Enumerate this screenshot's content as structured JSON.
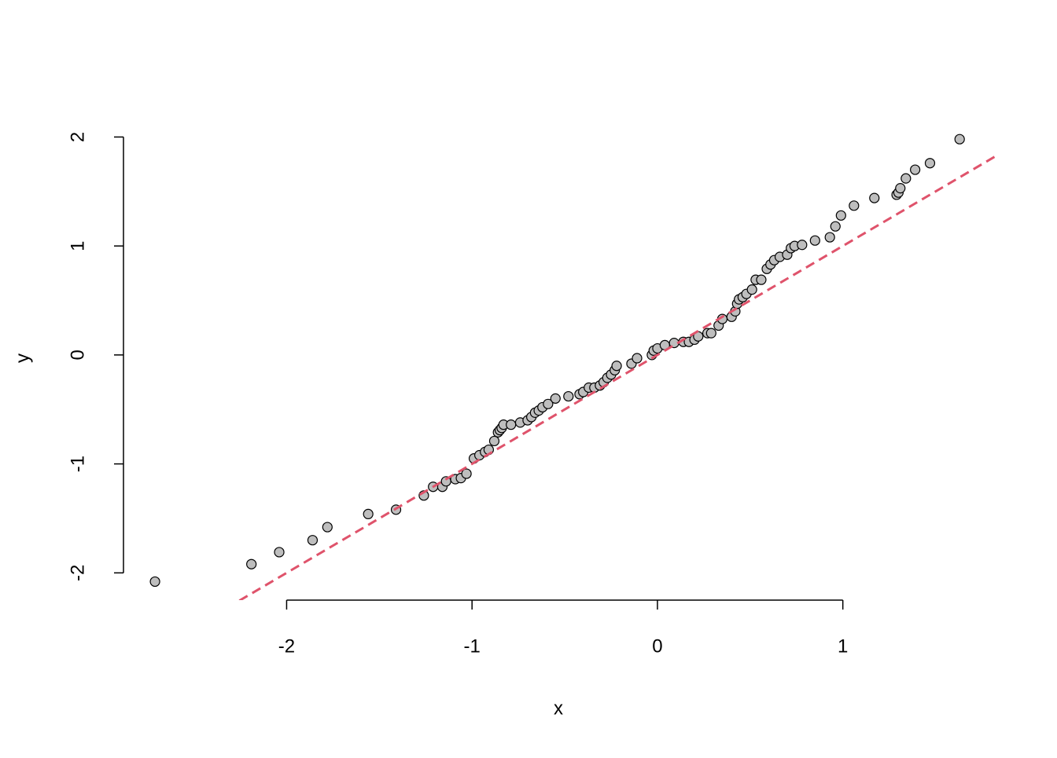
{
  "chart_data": {
    "type": "scatter",
    "x_label": "x",
    "y_label": "y",
    "x": [
      -2.71,
      -2.19,
      -2.04,
      -1.86,
      -1.78,
      -1.56,
      -1.41,
      -1.26,
      -1.21,
      -1.16,
      -1.14,
      -1.09,
      -1.06,
      -1.03,
      -0.99,
      -0.96,
      -0.93,
      -0.91,
      -0.88,
      -0.86,
      -0.85,
      -0.84,
      -0.83,
      -0.79,
      -0.74,
      -0.7,
      -0.68,
      -0.66,
      -0.64,
      -0.62,
      -0.59,
      -0.55,
      -0.48,
      -0.42,
      -0.4,
      -0.37,
      -0.34,
      -0.31,
      -0.29,
      -0.27,
      -0.25,
      -0.23,
      -0.22,
      -0.14,
      -0.11,
      -0.03,
      -0.02,
      0.0,
      0.04,
      0.09,
      0.14,
      0.17,
      0.2,
      0.22,
      0.27,
      0.29,
      0.33,
      0.35,
      0.4,
      0.42,
      0.43,
      0.44,
      0.46,
      0.48,
      0.51,
      0.53,
      0.56,
      0.59,
      0.61,
      0.63,
      0.66,
      0.7,
      0.72,
      0.74,
      0.78,
      0.85,
      0.93,
      0.96,
      0.99,
      1.06,
      1.17,
      1.29,
      1.3,
      1.31,
      1.34,
      1.39,
      1.47,
      1.63
    ],
    "y": [
      -2.08,
      -1.92,
      -1.81,
      -1.7,
      -1.58,
      -1.46,
      -1.42,
      -1.29,
      -1.21,
      -1.21,
      -1.16,
      -1.14,
      -1.13,
      -1.09,
      -0.95,
      -0.92,
      -0.89,
      -0.87,
      -0.79,
      -0.71,
      -0.69,
      -0.67,
      -0.64,
      -0.64,
      -0.62,
      -0.6,
      -0.57,
      -0.53,
      -0.51,
      -0.48,
      -0.45,
      -0.4,
      -0.38,
      -0.36,
      -0.34,
      -0.3,
      -0.3,
      -0.28,
      -0.25,
      -0.21,
      -0.18,
      -0.14,
      -0.1,
      -0.08,
      -0.03,
      0.0,
      0.04,
      0.06,
      0.09,
      0.11,
      0.12,
      0.12,
      0.14,
      0.17,
      0.2,
      0.2,
      0.27,
      0.33,
      0.35,
      0.4,
      0.47,
      0.51,
      0.53,
      0.56,
      0.6,
      0.69,
      0.69,
      0.79,
      0.83,
      0.87,
      0.9,
      0.92,
      0.98,
      1.0,
      1.01,
      1.05,
      1.08,
      1.18,
      1.28,
      1.37,
      1.44,
      1.47,
      1.49,
      1.53,
      1.62,
      1.7,
      1.76,
      1.98
    ],
    "point_fill": "#bebebe",
    "point_stroke": "#000000",
    "reference_line": {
      "intercept": 0,
      "slope": 1,
      "color": "#df536b"
    },
    "xlim": [
      -2.88,
      1.82
    ],
    "ylim": [
      -2.25,
      2.14
    ],
    "xticks": [
      -2,
      -1,
      0,
      1
    ],
    "yticks": [
      -2,
      -1,
      0,
      1,
      2
    ]
  }
}
